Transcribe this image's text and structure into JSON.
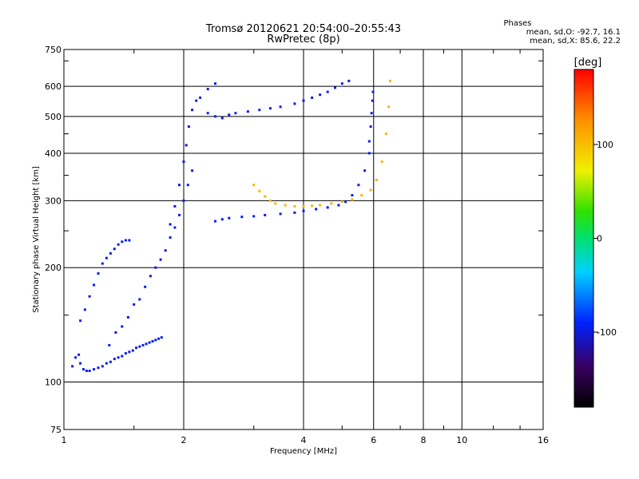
{
  "header": {
    "title_line1": "Tromsø 20120621 20:54:00–20:55:43",
    "title_line2": "RwPretec (8p)"
  },
  "stats": {
    "heading": "Phases",
    "line_o": "mean, sd,O: -92.7, 16.1",
    "line_x": "mean, sd,X:  85.6, 22.2"
  },
  "colorbar": {
    "unit_label": "[deg]",
    "range": [
      -180,
      180
    ],
    "tick_labels": [
      "100",
      "0",
      "-100"
    ],
    "tick_values": [
      100,
      0,
      -100
    ]
  },
  "chart_data": {
    "type": "scatter",
    "title": "Tromsø 20120621 20:54:00–20:55:43",
    "subtitle": "RwPretec (8p)",
    "xlabel": "Frequency [MHz]",
    "ylabel": "Stationary phase Virtual Height [km]",
    "x_scale": "log",
    "y_scale": "log",
    "xlim": [
      1,
      16
    ],
    "ylim": [
      75,
      750
    ],
    "grid": true,
    "x_ticks": [
      1,
      2,
      4,
      6,
      8,
      10,
      16
    ],
    "x_tick_labels": [
      "1",
      "2",
      "4",
      "6",
      "8",
      "10",
      "16"
    ],
    "y_ticks": [
      75,
      100,
      200,
      300,
      400,
      500,
      600,
      750
    ],
    "y_tick_labels": [
      "75",
      "100",
      "200",
      "300",
      "400",
      "500",
      "600",
      "750"
    ],
    "color_encoding": "phase [deg], rainbow scale from -180 (black) to 180 (red)",
    "series": [
      {
        "phase_deg": -95,
        "x": [
          1.05,
          1.07,
          1.09,
          1.1,
          1.12,
          1.14,
          1.16,
          1.19,
          1.22,
          1.25,
          1.28,
          1.31,
          1.34,
          1.37,
          1.4,
          1.43,
          1.46,
          1.49,
          1.52,
          1.55,
          1.58,
          1.61,
          1.64,
          1.67,
          1.7,
          1.73,
          1.76
        ],
        "y": [
          110,
          116,
          118,
          112,
          108,
          107,
          107,
          108,
          109,
          110,
          112,
          113,
          115,
          116,
          117,
          119,
          120,
          121,
          123,
          124,
          125,
          126,
          127,
          128,
          129,
          130,
          131
        ]
      },
      {
        "phase_deg": -95,
        "x": [
          1.1,
          1.13,
          1.16,
          1.19,
          1.22,
          1.25,
          1.28,
          1.31,
          1.34,
          1.37,
          1.4,
          1.43,
          1.46
        ],
        "y": [
          145,
          155,
          168,
          180,
          193,
          205,
          212,
          218,
          224,
          230,
          234,
          236,
          236
        ]
      },
      {
        "phase_deg": -98,
        "x": [
          1.3,
          1.35,
          1.4,
          1.45,
          1.5,
          1.55,
          1.6,
          1.65,
          1.7,
          1.75,
          1.8,
          1.85,
          1.9,
          1.95,
          2.0,
          2.05,
          2.1
        ],
        "y": [
          125,
          135,
          140,
          148,
          160,
          165,
          178,
          190,
          200,
          210,
          222,
          240,
          255,
          275,
          300,
          330,
          360
        ]
      },
      {
        "phase_deg": -100,
        "x": [
          1.85,
          1.9,
          1.95,
          2.0,
          2.03,
          2.06,
          2.1,
          2.15,
          2.2,
          2.3,
          2.4
        ],
        "y": [
          260,
          290,
          330,
          380,
          420,
          470,
          520,
          550,
          560,
          590,
          610
        ]
      },
      {
        "phase_deg": -95,
        "x": [
          2.4,
          2.5,
          2.6,
          2.8,
          3.0,
          3.2,
          3.5,
          3.8,
          4.0,
          4.3,
          4.6,
          4.9,
          5.1,
          5.3,
          5.5,
          5.7,
          5.85
        ],
        "y": [
          265,
          268,
          270,
          272,
          273,
          275,
          277,
          279,
          282,
          285,
          288,
          292,
          298,
          310,
          330,
          360,
          400
        ]
      },
      {
        "phase_deg": -97,
        "x": [
          5.85,
          5.9,
          5.93,
          5.96,
          5.98
        ],
        "y": [
          430,
          470,
          510,
          550,
          580
        ]
      },
      {
        "phase_deg": -95,
        "x": [
          2.3,
          2.4,
          2.5,
          2.6,
          2.7,
          2.9,
          3.1,
          3.3,
          3.5,
          3.8,
          4.0,
          4.2,
          4.4,
          4.6,
          4.8,
          5.0,
          5.2
        ],
        "y": [
          510,
          500,
          495,
          505,
          510,
          515,
          520,
          525,
          530,
          540,
          550,
          560,
          570,
          580,
          595,
          610,
          620
        ]
      },
      {
        "phase_deg": 105,
        "x": [
          3.0,
          3.1,
          3.2,
          3.3,
          3.4,
          3.6,
          3.8,
          4.0,
          4.2,
          4.4,
          4.7,
          5.0,
          5.3,
          5.6,
          5.9,
          6.1,
          6.3,
          6.45,
          6.55,
          6.6
        ],
        "y": [
          330,
          318,
          308,
          300,
          295,
          292,
          290,
          290,
          291,
          292,
          295,
          298,
          302,
          310,
          320,
          340,
          380,
          450,
          530,
          620
        ]
      }
    ]
  }
}
